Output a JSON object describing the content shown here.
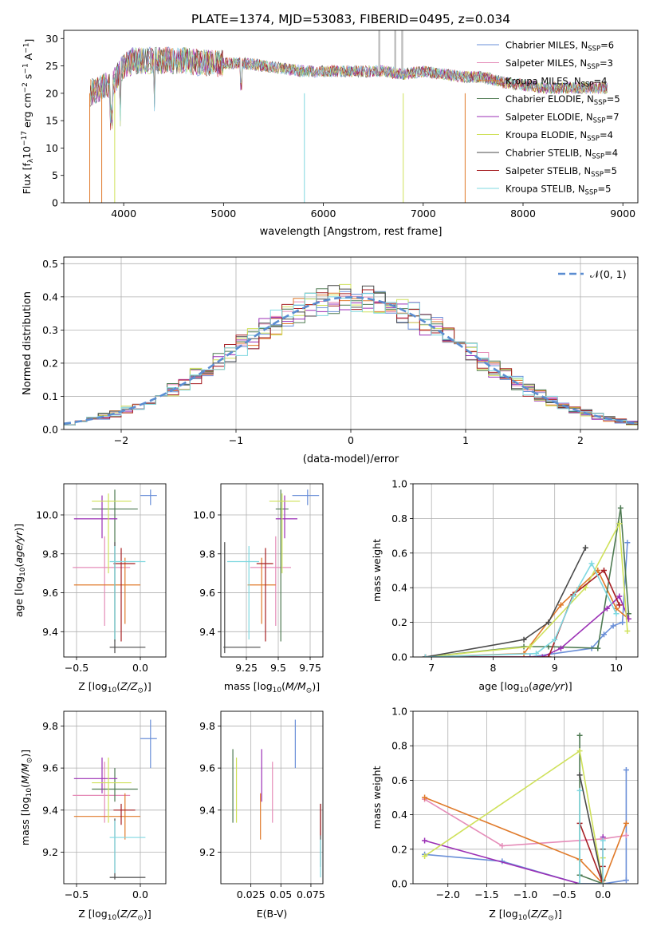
{
  "title": "PLATE=1374, MJD=53083, FIBERID=0495, z=0.034",
  "colors": [
    "#6a8fd8",
    "#e58cb8",
    "#e07a2a",
    "#4e7a52",
    "#9b2fb5",
    "#cfe15a",
    "#4a4a4a",
    "#a61e22",
    "#7fd8e0"
  ],
  "legend_spectrum": [
    {
      "label": "Chabrier MILES, N",
      "sub": "SSP",
      "suffix": "=6"
    },
    {
      "label": "Salpeter MILES, N",
      "sub": "SSP",
      "suffix": "=3"
    },
    {
      "label": "Kroupa MILES, N",
      "sub": "SSP",
      "suffix": "=4"
    },
    {
      "label": "Chabrier ELODIE, N",
      "sub": "SSP",
      "suffix": "=5"
    },
    {
      "label": "Salpeter ELODIE, N",
      "sub": "SSP",
      "suffix": "=7"
    },
    {
      "label": "Kroupa ELODIE, N",
      "sub": "SSP",
      "suffix": "=4"
    },
    {
      "label": "Chabrier STELIB, N",
      "sub": "SSP",
      "suffix": "=4"
    },
    {
      "label": "Salpeter STELIB, N",
      "sub": "SSP",
      "suffix": "=5"
    },
    {
      "label": "Kroupa STELIB, N",
      "sub": "SSP",
      "suffix": "=5"
    }
  ],
  "legend_gauss": "𝒩(0, 1)",
  "chart_data": [
    {
      "id": "spectrum",
      "type": "line",
      "xlabel": "wavelength [Angstrom, rest frame]",
      "ylabel": "Flux [f_λ 10^-17 erg cm^-2 s^-1 A^-1]",
      "xlim": [
        3400,
        9150
      ],
      "ylim": [
        0,
        31.5
      ],
      "xticks": [
        4000,
        5000,
        6000,
        7000,
        8000,
        9000
      ],
      "yticks": [
        0,
        5,
        10,
        15,
        20,
        25,
        30
      ],
      "grid": false,
      "legend": "top-right",
      "continuum": {
        "x": [
          3650,
          3900,
          4000,
          4100,
          4200,
          4400,
          4600,
          4800,
          5000,
          5200,
          5400,
          5600,
          5800,
          6000,
          6200,
          6400,
          6600,
          6800,
          7000,
          7200,
          7400,
          7600,
          7800,
          8000,
          8200,
          8400,
          8600,
          8800
        ],
        "y": [
          20,
          22,
          25,
          26,
          26,
          26,
          26,
          25.5,
          25.5,
          25.5,
          25,
          24.5,
          24,
          24,
          24,
          24,
          24,
          23.5,
          24,
          23.5,
          23,
          23,
          22,
          21.5,
          21,
          21,
          21,
          21
        ]
      },
      "drop_lines": [
        3660,
        3780,
        3910,
        5810,
        6800,
        7420
      ]
    },
    {
      "id": "residual_hist",
      "type": "histogram",
      "xlabel": "(data-model)/error",
      "ylabel": "Normed distribution",
      "xlim": [
        -2.5,
        2.5
      ],
      "ylim": [
        0,
        0.52
      ],
      "xticks": [
        -2,
        -1,
        0,
        1,
        2
      ],
      "yticks": [
        0.0,
        0.1,
        0.2,
        0.3,
        0.4,
        0.5
      ],
      "grid": true,
      "legend": "top-right",
      "bin_width": 0.1,
      "gaussian": {
        "mean": 0,
        "sigma": 1
      }
    },
    {
      "id": "age_vs_Z",
      "type": "errorbar",
      "xlabel": "Z [log10(Z/Z⊙)]",
      "ylabel": "age  [log10(age/yr)]",
      "xlim": [
        -0.6,
        0.2
      ],
      "ylim": [
        9.27,
        10.16
      ],
      "xticks": [
        -0.5,
        0.0
      ],
      "yticks": [
        9.4,
        9.6,
        9.8,
        10.0
      ],
      "grid": true,
      "points": [
        {
          "x": 0.08,
          "xe": [
            0.08,
            0.05
          ],
          "y": 10.1,
          "ye": [
            0.05,
            0.03
          ]
        },
        {
          "x": -0.28,
          "xe": [
            0.25,
            0.2
          ],
          "y": 9.73,
          "ye": [
            0.3,
            0.16
          ]
        },
        {
          "x": -0.12,
          "xe": [
            0.4,
            0.12
          ],
          "y": 9.64,
          "ye": [
            0.2,
            0.14
          ]
        },
        {
          "x": -0.2,
          "xe": [
            0.18,
            0.18
          ],
          "y": 10.03,
          "ye": [
            0.68,
            0.1
          ]
        },
        {
          "x": -0.3,
          "xe": [
            0.22,
            0.12
          ],
          "y": 9.98,
          "ye": [
            0.1,
            0.12
          ]
        },
        {
          "x": -0.25,
          "xe": [
            0.13,
            0.18
          ],
          "y": 10.07,
          "ye": [
            0.37,
            0.04
          ]
        },
        {
          "x": -0.2,
          "xe": [
            0.04,
            0.24
          ],
          "y": 9.32,
          "ye": [
            0.03,
            0.54
          ]
        },
        {
          "x": -0.15,
          "xe": [
            0.06,
            0.11
          ],
          "y": 9.75,
          "ye": [
            0.4,
            0.08
          ]
        },
        {
          "x": -0.2,
          "xe": [
            0.04,
            0.24
          ],
          "y": 9.76,
          "ye": [
            0.4,
            0.08
          ]
        }
      ]
    },
    {
      "id": "age_vs_mass",
      "type": "errorbar",
      "xlabel": "mass [log10(M/M⊙)]",
      "ylabel": "",
      "xlim": [
        9.05,
        9.85
      ],
      "ylim": [
        9.27,
        10.16
      ],
      "xticks": [
        9.25,
        9.5,
        9.75
      ],
      "yticks": [
        9.4,
        9.6,
        9.8,
        10.0
      ],
      "grid": true,
      "points": [
        {
          "x": 9.73,
          "xe": [
            0.12,
            0.09
          ],
          "y": 10.1,
          "ye": [
            0.05,
            0.03
          ]
        },
        {
          "x": 9.48,
          "xe": [
            0.2,
            0.12
          ],
          "y": 9.73,
          "ye": [
            0.3,
            0.16
          ]
        },
        {
          "x": 9.37,
          "xe": [
            0.11,
            0.11
          ],
          "y": 9.64,
          "ye": [
            0.2,
            0.14
          ]
        },
        {
          "x": 9.52,
          "xe": [
            0.04,
            0.06
          ],
          "y": 10.03,
          "ye": [
            0.68,
            0.1
          ]
        },
        {
          "x": 9.55,
          "xe": [
            0.07,
            0.1
          ],
          "y": 9.98,
          "ye": [
            0.1,
            0.12
          ]
        },
        {
          "x": 9.53,
          "xe": [
            0.1,
            0.14
          ],
          "y": 10.07,
          "ye": [
            0.37,
            0.04
          ]
        },
        {
          "x": 9.08,
          "xe": [
            0.01,
            0.28
          ],
          "y": 9.32,
          "ye": [
            0.03,
            0.54
          ]
        },
        {
          "x": 9.4,
          "xe": [
            0.07,
            0.06
          ],
          "y": 9.75,
          "ye": [
            0.4,
            0.08
          ]
        },
        {
          "x": 9.27,
          "xe": [
            0.17,
            0.08
          ],
          "y": 9.76,
          "ye": [
            0.4,
            0.08
          ]
        }
      ]
    },
    {
      "id": "weight_vs_age",
      "type": "line",
      "xlabel": "age  [log10(age/yr)]",
      "ylabel": "mass weight",
      "xlim": [
        6.7,
        10.35
      ],
      "ylim": [
        0,
        1.0
      ],
      "xticks": [
        7,
        8,
        9,
        10
      ],
      "yticks": [
        0.0,
        0.2,
        0.4,
        0.6,
        0.8,
        1.0
      ],
      "grid": true,
      "series": [
        {
          "x": [
            6.9,
            8.6,
            9.6,
            9.8,
            9.95,
            10.1,
            10.18
          ],
          "y": [
            0.0,
            0.0,
            0.05,
            0.13,
            0.18,
            0.2,
            0.66
          ]
        },
        {
          "x": 6.9,
          "y": 0
        },
        {
          "x": [
            6.9,
            8.5,
            9.1,
            9.4,
            9.7,
            10.0,
            10.2
          ],
          "y": [
            0.0,
            0.02,
            0.3,
            0.4,
            0.5,
            0.28,
            0.22
          ]
        },
        {
          "x": [
            6.9,
            8.5,
            8.9,
            9.7,
            10.07,
            10.2
          ],
          "y": [
            0.0,
            0.06,
            0.06,
            0.05,
            0.86,
            0.25
          ]
        },
        {
          "x": [
            6.9,
            8.8,
            9.1,
            9.85,
            10.05,
            10.2
          ],
          "y": [
            0.0,
            0.0,
            0.05,
            0.28,
            0.35,
            0.22
          ]
        },
        {
          "x": [
            6.9,
            8.6,
            9.5,
            10.05,
            10.18
          ],
          "y": [
            0.0,
            0.06,
            0.4,
            0.77,
            0.15
          ]
        },
        {
          "x": [
            6.9,
            8.5,
            8.9,
            9.5
          ],
          "y": [
            0.0,
            0.1,
            0.2,
            0.63
          ]
        },
        {
          "x": [
            6.9,
            8.9,
            9.3,
            9.8,
            10.05
          ],
          "y": [
            0.0,
            0.0,
            0.36,
            0.5,
            0.3
          ]
        },
        {
          "x": [
            6.9,
            8.7,
            9.0,
            9.3,
            9.6,
            10.0
          ],
          "y": [
            0.0,
            0.02,
            0.1,
            0.35,
            0.54,
            0.25
          ]
        }
      ]
    },
    {
      "id": "mass_vs_Z",
      "type": "errorbar",
      "xlabel": "Z [log10(Z/Z⊙)]",
      "ylabel": "mass [log10(M/M⊙)]",
      "xlim": [
        -0.6,
        0.2
      ],
      "ylim": [
        9.05,
        9.87
      ],
      "xticks": [
        -0.5,
        0.0
      ],
      "yticks": [
        9.2,
        9.4,
        9.6,
        9.8
      ],
      "grid": true,
      "points": [
        {
          "x": 0.08,
          "xe": [
            0.08,
            0.05
          ],
          "y": 9.74,
          "ye": [
            0.14,
            0.09
          ]
        },
        {
          "x": -0.28,
          "xe": [
            0.25,
            0.2
          ],
          "y": 9.47,
          "ye": [
            0.13,
            0.16
          ]
        },
        {
          "x": -0.12,
          "xe": [
            0.4,
            0.12
          ],
          "y": 9.37,
          "ye": [
            0.11,
            0.11
          ]
        },
        {
          "x": -0.2,
          "xe": [
            0.18,
            0.18
          ],
          "y": 9.5,
          "ye": [
            0.06,
            0.1
          ]
        },
        {
          "x": -0.3,
          "xe": [
            0.22,
            0.12
          ],
          "y": 9.55,
          "ye": [
            0.07,
            0.1
          ]
        },
        {
          "x": -0.25,
          "xe": [
            0.13,
            0.18
          ],
          "y": 9.53,
          "ye": [
            0.19,
            0.12
          ]
        },
        {
          "x": -0.2,
          "xe": [
            0.04,
            0.24
          ],
          "y": 9.08,
          "ye": [
            0.01,
            0.28
          ]
        },
        {
          "x": -0.15,
          "xe": [
            0.06,
            0.11
          ],
          "y": 9.4,
          "ye": [
            0.07,
            0.03
          ]
        },
        {
          "x": -0.2,
          "xe": [
            0.04,
            0.24
          ],
          "y": 9.27,
          "ye": [
            0.17,
            0.08
          ]
        }
      ]
    },
    {
      "id": "mass_vs_ebv",
      "type": "errorbar",
      "xlabel": "E(B-V)",
      "ylabel": "",
      "xlim": [
        0.0,
        0.085
      ],
      "ylim": [
        9.05,
        9.87
      ],
      "xticks": [
        0.025,
        0.05,
        0.075
      ],
      "yticks": [
        9.2,
        9.4,
        9.6,
        9.8
      ],
      "grid": true,
      "points": [
        {
          "x": 0.062,
          "xe": [
            0,
            0
          ],
          "y": 9.74,
          "ye": [
            0.14,
            0.09
          ]
        },
        {
          "x": 0.043,
          "xe": [
            0,
            0
          ],
          "y": 9.47,
          "ye": [
            0.13,
            0.16
          ]
        },
        {
          "x": 0.033,
          "xe": [
            0,
            0
          ],
          "y": 9.37,
          "ye": [
            0.11,
            0.11
          ]
        },
        {
          "x": 0.01,
          "xe": [
            0,
            0
          ],
          "y": 9.5,
          "ye": [
            0.16,
            0.19
          ]
        },
        {
          "x": 0.034,
          "xe": [
            0,
            0
          ],
          "y": 9.55,
          "ye": [
            0.11,
            0.14
          ]
        },
        {
          "x": 0.013,
          "xe": [
            0,
            0
          ],
          "y": 9.53,
          "ye": [
            0.19,
            0.12
          ]
        },
        {
          "x": 0.083,
          "xe": [
            0,
            0
          ],
          "y": 9.33,
          "ye": [
            0.2,
            0.1
          ]
        },
        {
          "x": 0.083,
          "xe": [
            0,
            0
          ],
          "y": 9.35,
          "ye": [
            0.07,
            0.08
          ]
        },
        {
          "x": 0.083,
          "xe": [
            0,
            0
          ],
          "y": 9.2,
          "ye": [
            0.12,
            0.06
          ]
        }
      ]
    },
    {
      "id": "weight_vs_Z",
      "type": "line",
      "xlabel": "Z [log10(Z/Z⊙)]",
      "ylabel": "mass weight",
      "xlim": [
        -2.45,
        0.45
      ],
      "ylim": [
        0,
        1.0
      ],
      "xticks": [
        -2.0,
        -1.5,
        -1.0,
        -0.5,
        0.0
      ],
      "yticks": [
        0.0,
        0.2,
        0.4,
        0.6,
        0.8,
        1.0
      ],
      "grid": true,
      "series": [
        {
          "x": [
            -2.3,
            -1.3,
            -0.3,
            0.0,
            0.3,
            0.3
          ],
          "y": [
            0.17,
            0.13,
            0.0,
            0.0,
            0.02,
            0.66
          ]
        },
        {
          "x": [
            -2.3,
            -1.3,
            0.0,
            0.3
          ],
          "y": [
            0.49,
            0.22,
            0.26,
            0.28
          ]
        },
        {
          "x": [
            -2.3,
            -0.3,
            0.0,
            0.3
          ],
          "y": [
            0.5,
            0.14,
            0.0,
            0.35
          ]
        },
        {
          "x": [
            -0.3,
            -0.3,
            0.0,
            0.0
          ],
          "y": [
            0.86,
            0.05,
            0.0,
            0.02
          ]
        },
        {
          "x": [
            -2.3,
            -0.3,
            0.0,
            0.0
          ],
          "y": [
            0.25,
            0.0,
            0.0,
            0.27
          ]
        },
        {
          "x": [
            -2.3,
            -0.3,
            0.0,
            0.0
          ],
          "y": [
            0.16,
            0.77,
            0.0,
            0.15
          ]
        },
        {
          "x": [
            -0.3,
            0.0,
            0.0
          ],
          "y": [
            0.63,
            0.0,
            0.2
          ]
        },
        {
          "x": [
            -0.3,
            0.0,
            0.0
          ],
          "y": [
            0.35,
            0.0,
            0.1
          ]
        },
        {
          "x": [
            -0.3,
            -0.3,
            0.0,
            0.0
          ],
          "y": [
            0.54,
            0.0,
            0.0,
            0.25
          ]
        }
      ]
    }
  ]
}
